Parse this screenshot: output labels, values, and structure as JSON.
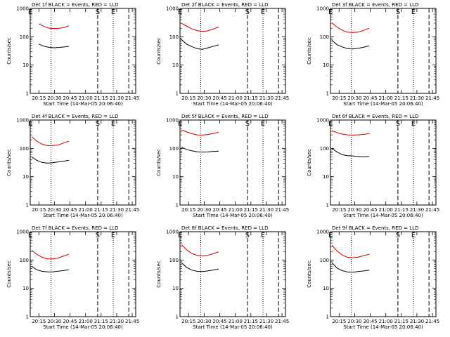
{
  "chart_data": [
    {
      "type": "line",
      "title": "Det 1f BLACK = Events, RED = LLD",
      "xlabel": "Start Time (14-Mar-05 20:06:40)",
      "ylabel": "Counts/sec",
      "log_y": true,
      "ylim": [
        1,
        1000
      ],
      "yticks": [
        "1",
        "10",
        "100",
        "1000"
      ],
      "xlim": [
        "20:06:40",
        "21:48:20"
      ],
      "xticks": [
        "20:15",
        "20:30",
        "20:45",
        "21:00",
        "21:15",
        "21:30",
        "21:45"
      ],
      "markers": [
        {
          "time": "20:06:40",
          "label": "E",
          "style": "dashed"
        },
        {
          "time": "20:26:40",
          "label": "",
          "style": "dotted"
        },
        {
          "time": "21:11:40",
          "label": "S",
          "style": "dashed"
        },
        {
          "time": "21:26:40",
          "label": "E",
          "style": "dotted"
        },
        {
          "time": "21:41:40",
          "label": "",
          "style": "dashed"
        }
      ],
      "series": [
        {
          "color": "#d00000",
          "x": [
            "20:15",
            "20:20",
            "20:25",
            "20:30",
            "20:35",
            "20:40",
            "20:44"
          ],
          "y": [
            290,
            230,
            200,
            195,
            200,
            215,
            245
          ]
        },
        {
          "color": "#000000",
          "x": [
            "20:15",
            "20:20",
            "20:25",
            "20:30",
            "20:35",
            "20:40",
            "20:44"
          ],
          "y": [
            55,
            46,
            42,
            41,
            42,
            44,
            46
          ]
        }
      ]
    },
    {
      "type": "line",
      "title": "Det 2f BLACK = Events, RED = LLD",
      "xlabel": "Start Time (14-Mar-05 20:06:40)",
      "ylabel": "Counts/sec",
      "log_y": true,
      "ylim": [
        1,
        1000
      ],
      "yticks": [
        "1",
        "10",
        "100",
        "1000"
      ],
      "xlim": [
        "20:06:40",
        "21:48:20"
      ],
      "xticks": [
        "20:15",
        "20:30",
        "20:45",
        "21:00",
        "21:15",
        "21:30",
        "21:45"
      ],
      "markers": [
        {
          "time": "20:06:40",
          "label": "E",
          "style": "dashed"
        },
        {
          "time": "20:26:40",
          "label": "",
          "style": "dotted"
        },
        {
          "time": "21:11:40",
          "label": "S",
          "style": "dashed"
        },
        {
          "time": "21:26:40",
          "label": "E",
          "style": "dotted"
        },
        {
          "time": "21:41:40",
          "label": "",
          "style": "dashed"
        }
      ],
      "series": [
        {
          "color": "#d00000",
          "x": [
            "20:08",
            "20:13",
            "20:18",
            "20:23",
            "20:28",
            "20:33",
            "20:38",
            "20:44"
          ],
          "y": [
            300,
            240,
            190,
            165,
            155,
            160,
            185,
            220
          ]
        },
        {
          "color": "#000000",
          "x": [
            "20:08",
            "20:13",
            "20:18",
            "20:23",
            "20:28",
            "20:33",
            "20:38",
            "20:44"
          ],
          "y": [
            80,
            55,
            45,
            38,
            36,
            40,
            45,
            52
          ]
        }
      ]
    },
    {
      "type": "line",
      "title": "Det 3f BLACK = Events, RED = LLD",
      "xlabel": "Start Time (14-Mar-05 20:06:40)",
      "ylabel": "Counts/sec",
      "log_y": true,
      "ylim": [
        1,
        1000
      ],
      "yticks": [
        "1",
        "10",
        "100",
        "1000"
      ],
      "xlim": [
        "20:06:40",
        "21:48:20"
      ],
      "xticks": [
        "20:15",
        "20:30",
        "20:45",
        "21:00",
        "21:15",
        "21:30",
        "21:45"
      ],
      "markers": [
        {
          "time": "20:06:40",
          "label": "E",
          "style": "dashed"
        },
        {
          "time": "20:26:40",
          "label": "",
          "style": "dotted"
        },
        {
          "time": "21:11:40",
          "label": "S",
          "style": "dashed"
        },
        {
          "time": "21:26:40",
          "label": "E",
          "style": "dotted"
        },
        {
          "time": "21:41:40",
          "label": "",
          "style": "dashed"
        }
      ],
      "series": [
        {
          "color": "#d00000",
          "x": [
            "20:08",
            "20:13",
            "20:18",
            "20:23",
            "20:28",
            "20:33",
            "20:38",
            "20:44"
          ],
          "y": [
            310,
            220,
            170,
            145,
            140,
            145,
            165,
            200
          ]
        },
        {
          "color": "#000000",
          "x": [
            "20:08",
            "20:13",
            "20:18",
            "20:23",
            "20:28",
            "20:33",
            "20:38",
            "20:44"
          ],
          "y": [
            75,
            52,
            44,
            38,
            37,
            39,
            42,
            48
          ]
        }
      ]
    },
    {
      "type": "line",
      "title": "Det 4f BLACK = Events, RED = LLD",
      "xlabel": "Start Time (14-Mar-05 20:06:40)",
      "ylabel": "Counts/sec",
      "log_y": true,
      "ylim": [
        1,
        1000
      ],
      "yticks": [
        "1",
        "10",
        "100",
        "1000"
      ],
      "xlim": [
        "20:06:40",
        "21:48:20"
      ],
      "xticks": [
        "20:15",
        "20:30",
        "20:45",
        "21:00",
        "21:15",
        "21:30",
        "21:45"
      ],
      "markers": [
        {
          "time": "20:06:40",
          "label": "E",
          "style": "dashed"
        },
        {
          "time": "20:26:40",
          "label": "",
          "style": "dotted"
        },
        {
          "time": "21:11:40",
          "label": "S",
          "style": "dashed"
        },
        {
          "time": "21:26:40",
          "label": "E",
          "style": "dotted"
        },
        {
          "time": "21:41:40",
          "label": "",
          "style": "dashed"
        }
      ],
      "series": [
        {
          "color": "#d00000",
          "x": [
            "20:08",
            "20:13",
            "20:18",
            "20:23",
            "20:28",
            "20:33",
            "20:38",
            "20:44"
          ],
          "y": [
            260,
            180,
            140,
            125,
            125,
            130,
            150,
            180
          ]
        },
        {
          "color": "#000000",
          "x": [
            "20:08",
            "20:13",
            "20:18",
            "20:23",
            "20:28",
            "20:33",
            "20:38",
            "20:44"
          ],
          "y": [
            50,
            38,
            32,
            30,
            31,
            33,
            35,
            38
          ]
        }
      ]
    },
    {
      "type": "line",
      "title": "Det 5f BLACK = Events, RED = LLD",
      "xlabel": "Start Time (14-Mar-05 20:06:40)",
      "ylabel": "Counts/sec",
      "log_y": true,
      "ylim": [
        1,
        1000
      ],
      "yticks": [
        "1",
        "10",
        "100",
        "1000"
      ],
      "xlim": [
        "20:06:40",
        "21:48:20"
      ],
      "xticks": [
        "20:15",
        "20:30",
        "20:45",
        "21:00",
        "21:15",
        "21:30",
        "21:45"
      ],
      "markers": [
        {
          "time": "20:06:40",
          "label": "E",
          "style": "dashed"
        },
        {
          "time": "20:26:40",
          "label": "",
          "style": "dotted"
        },
        {
          "time": "21:11:40",
          "label": "S",
          "style": "dashed"
        },
        {
          "time": "21:26:40",
          "label": "E",
          "style": "dotted"
        },
        {
          "time": "21:41:40",
          "label": "",
          "style": "dashed"
        }
      ],
      "series": [
        {
          "color": "#d00000",
          "x": [
            "20:08",
            "20:13",
            "20:18",
            "20:23",
            "20:28",
            "20:33",
            "20:38",
            "20:44"
          ],
          "y": [
            450,
            380,
            330,
            300,
            295,
            305,
            330,
            370
          ]
        },
        {
          "color": "#000000",
          "x": [
            "20:08",
            "20:13",
            "20:18",
            "20:23",
            "20:28",
            "20:33",
            "20:38",
            "20:44"
          ],
          "y": [
            110,
            92,
            82,
            76,
            74,
            75,
            78,
            80
          ]
        }
      ]
    },
    {
      "type": "line",
      "title": "Det 6f BLACK = Events, RED = LLD",
      "xlabel": "Start Time (14-Mar-05 20:06:40)",
      "ylabel": "Counts/sec",
      "log_y": true,
      "ylim": [
        1,
        1000
      ],
      "yticks": [
        "1",
        "10",
        "100",
        "1000"
      ],
      "xlim": [
        "20:06:40",
        "21:48:20"
      ],
      "xticks": [
        "20:15",
        "20:30",
        "20:45",
        "21:00",
        "21:15",
        "21:30",
        "21:45"
      ],
      "markers": [
        {
          "time": "20:06:40",
          "label": "E",
          "style": "dashed"
        },
        {
          "time": "20:26:40",
          "label": "",
          "style": "dotted"
        },
        {
          "time": "21:11:40",
          "label": "S",
          "style": "dashed"
        },
        {
          "time": "21:26:40",
          "label": "E",
          "style": "dotted"
        },
        {
          "time": "21:41:40",
          "label": "",
          "style": "dashed"
        }
      ],
      "series": [
        {
          "color": "#d00000",
          "x": [
            "20:08",
            "20:13",
            "20:18",
            "20:23",
            "20:28",
            "20:33",
            "20:38",
            "20:44"
          ],
          "y": [
            420,
            360,
            320,
            300,
            295,
            300,
            310,
            330
          ]
        },
        {
          "color": "#000000",
          "x": [
            "20:08",
            "20:13",
            "20:18",
            "20:23",
            "20:28",
            "20:33",
            "20:38",
            "20:44"
          ],
          "y": [
            100,
            75,
            60,
            55,
            54,
            52,
            50,
            52
          ]
        }
      ]
    },
    {
      "type": "line",
      "title": "Det 7f BLACK = Events, RED = LLD",
      "xlabel": "Start Time (14-Mar-05 20:06:40)",
      "ylabel": "Counts/sec",
      "log_y": true,
      "ylim": [
        1,
        1000
      ],
      "yticks": [
        "1",
        "10",
        "100",
        "1000"
      ],
      "xlim": [
        "20:06:40",
        "21:48:20"
      ],
      "xticks": [
        "20:15",
        "20:30",
        "20:45",
        "21:00",
        "21:15",
        "21:30",
        "21:45"
      ],
      "markers": [
        {
          "time": "20:06:40",
          "label": "E",
          "style": "dashed"
        },
        {
          "time": "20:26:40",
          "label": "",
          "style": "dotted"
        },
        {
          "time": "21:11:40",
          "label": "S",
          "style": "dashed"
        },
        {
          "time": "21:26:40",
          "label": "E",
          "style": "dotted"
        },
        {
          "time": "21:41:40",
          "label": "",
          "style": "dashed"
        }
      ],
      "series": [
        {
          "color": "#d00000",
          "x": [
            "20:08",
            "20:13",
            "20:18",
            "20:23",
            "20:28",
            "20:33",
            "20:38",
            "20:44"
          ],
          "y": [
            220,
            160,
            125,
            110,
            110,
            115,
            135,
            160
          ]
        },
        {
          "color": "#000000",
          "x": [
            "20:08",
            "20:13",
            "20:18",
            "20:23",
            "20:28",
            "20:33",
            "20:38",
            "20:44"
          ],
          "y": [
            60,
            45,
            40,
            38,
            38,
            40,
            42,
            45
          ]
        }
      ]
    },
    {
      "type": "line",
      "title": "Det 8f BLACK = Events, RED = LLD",
      "xlabel": "Start Time (14-Mar-05 20:06:40)",
      "ylabel": "Counts/sec",
      "log_y": true,
      "ylim": [
        1,
        1000
      ],
      "yticks": [
        "1",
        "10",
        "100",
        "1000"
      ],
      "xlim": [
        "20:06:40",
        "21:48:20"
      ],
      "xticks": [
        "20:15",
        "20:30",
        "20:45",
        "21:00",
        "21:15",
        "21:30",
        "21:45"
      ],
      "markers": [
        {
          "time": "20:06:40",
          "label": "E",
          "style": "dashed"
        },
        {
          "time": "20:26:40",
          "label": "",
          "style": "dotted"
        },
        {
          "time": "21:11:40",
          "label": "S",
          "style": "dashed"
        },
        {
          "time": "21:26:40",
          "label": "E",
          "style": "dotted"
        },
        {
          "time": "21:41:40",
          "label": "",
          "style": "dashed"
        }
      ],
      "series": [
        {
          "color": "#d00000",
          "x": [
            "20:08",
            "20:13",
            "20:18",
            "20:23",
            "20:28",
            "20:33",
            "20:38",
            "20:44"
          ],
          "y": [
            350,
            230,
            170,
            145,
            140,
            145,
            165,
            195
          ]
        },
        {
          "color": "#000000",
          "x": [
            "20:08",
            "20:13",
            "20:18",
            "20:23",
            "20:28",
            "20:33",
            "20:38",
            "20:44"
          ],
          "y": [
            80,
            55,
            44,
            40,
            39,
            41,
            44,
            48
          ]
        }
      ]
    },
    {
      "type": "line",
      "title": "Det 9f BLACK = Events, RED = LLD",
      "xlabel": "Start Time (14-Mar-05 20:06:40)",
      "ylabel": "Counts/sec",
      "log_y": true,
      "ylim": [
        1,
        1000
      ],
      "yticks": [
        "1",
        "10",
        "100",
        "1000"
      ],
      "xlim": [
        "20:06:40",
        "21:48:20"
      ],
      "xticks": [
        "20:15",
        "20:30",
        "20:45",
        "21:00",
        "21:15",
        "21:30",
        "21:45"
      ],
      "markers": [
        {
          "time": "20:06:40",
          "label": "E",
          "style": "dashed"
        },
        {
          "time": "20:26:40",
          "label": "",
          "style": "dotted"
        },
        {
          "time": "21:11:40",
          "label": "S",
          "style": "dashed"
        },
        {
          "time": "21:26:40",
          "label": "E",
          "style": "dotted"
        },
        {
          "time": "21:41:40",
          "label": "",
          "style": "dashed"
        }
      ],
      "series": [
        {
          "color": "#d00000",
          "x": [
            "20:08",
            "20:13",
            "20:18",
            "20:23",
            "20:28",
            "20:33",
            "20:38",
            "20:44"
          ],
          "y": [
            330,
            210,
            150,
            125,
            120,
            125,
            140,
            160
          ]
        },
        {
          "color": "#000000",
          "x": [
            "20:08",
            "20:13",
            "20:18",
            "20:23",
            "20:28",
            "20:33",
            "20:38",
            "20:44"
          ],
          "y": [
            80,
            52,
            42,
            38,
            37,
            39,
            41,
            44
          ]
        }
      ]
    }
  ]
}
